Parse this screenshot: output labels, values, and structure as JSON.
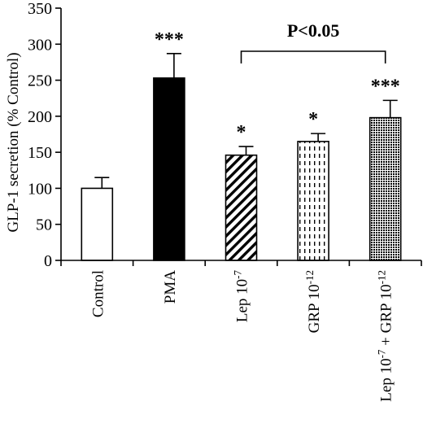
{
  "chart_data": {
    "type": "bar",
    "ylabel": "GLP-1 secretion (% Control)",
    "xlabel": "",
    "title": "",
    "ylim": [
      0,
      350
    ],
    "yticks": [
      0,
      50,
      100,
      150,
      200,
      250,
      300,
      350
    ],
    "grid": false,
    "categories": [
      {
        "id": "control",
        "label": [
          {
            "t": "Control"
          }
        ]
      },
      {
        "id": "pma",
        "label": [
          {
            "t": "PMA"
          }
        ]
      },
      {
        "id": "lep",
        "label": [
          {
            "t": "Lep 10"
          },
          {
            "t": "-7",
            "sup": true
          }
        ]
      },
      {
        "id": "grp",
        "label": [
          {
            "t": "GRP 10"
          },
          {
            "t": "-12",
            "sup": true
          }
        ]
      },
      {
        "id": "lepgrp",
        "label": [
          {
            "t": "Lep 10"
          },
          {
            "t": "-7",
            "sup": true
          },
          {
            "t": " + GRP 10"
          },
          {
            "t": "-12",
            "sup": true
          }
        ]
      }
    ],
    "values": [
      100,
      253,
      146,
      165,
      198
    ],
    "errors": [
      15,
      34,
      12,
      11,
      24
    ],
    "fills": [
      "white",
      "solid",
      "diagonal",
      "dashed-vertical",
      "dots"
    ],
    "significance": [
      "",
      "***",
      "*",
      "*",
      "***"
    ],
    "bracket": {
      "from": 2,
      "to": 4,
      "label": "P<0.05"
    }
  }
}
